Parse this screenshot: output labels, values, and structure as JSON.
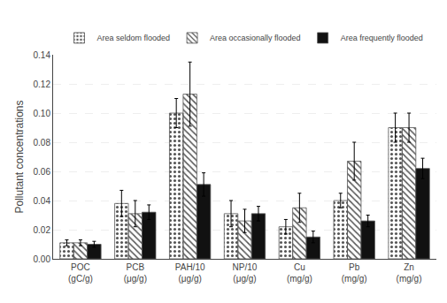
{
  "chart_data": {
    "type": "bar",
    "categories": [
      "POC\n(gC/g)",
      "PCB\n(μg/g)",
      "PAH/10\n(μg/g)",
      "NP/10\n(μg/g)",
      "Cu\n(mg/g)",
      "Pb\n(mg/g)",
      "Zn\n(mg/g)"
    ],
    "series": [
      {
        "name": "Area seldom flooded",
        "color": "#ffffff",
        "values": [
          0.011,
          0.038,
          0.1,
          0.031,
          0.022,
          0.04,
          0.09
        ],
        "errors": [
          0.002,
          0.009,
          0.01,
          0.009,
          0.005,
          0.005,
          0.01
        ]
      },
      {
        "name": "Area occasionally flooded",
        "color": "#cccccc",
        "values": [
          0.011,
          0.031,
          0.113,
          0.026,
          0.035,
          0.067,
          0.09
        ],
        "errors": [
          0.002,
          0.009,
          0.022,
          0.008,
          0.01,
          0.013,
          0.01
        ]
      },
      {
        "name": "Area frequently flooded",
        "color": "#111111",
        "values": [
          0.01,
          0.032,
          0.051,
          0.031,
          0.015,
          0.026,
          0.062
        ],
        "errors": [
          0.002,
          0.005,
          0.008,
          0.005,
          0.004,
          0.004,
          0.007
        ]
      }
    ],
    "ylabel": "Pollutant concentrations",
    "ylim": [
      0,
      0.14
    ],
    "yticks": [
      {
        "value": 0,
        "label": "0.00"
      },
      0.02,
      0.04,
      0.06,
      0.08,
      {
        "value": 0.1,
        "label": "0.10"
      },
      0.12,
      0.14
    ],
    "grid": true,
    "legend": "top"
  }
}
